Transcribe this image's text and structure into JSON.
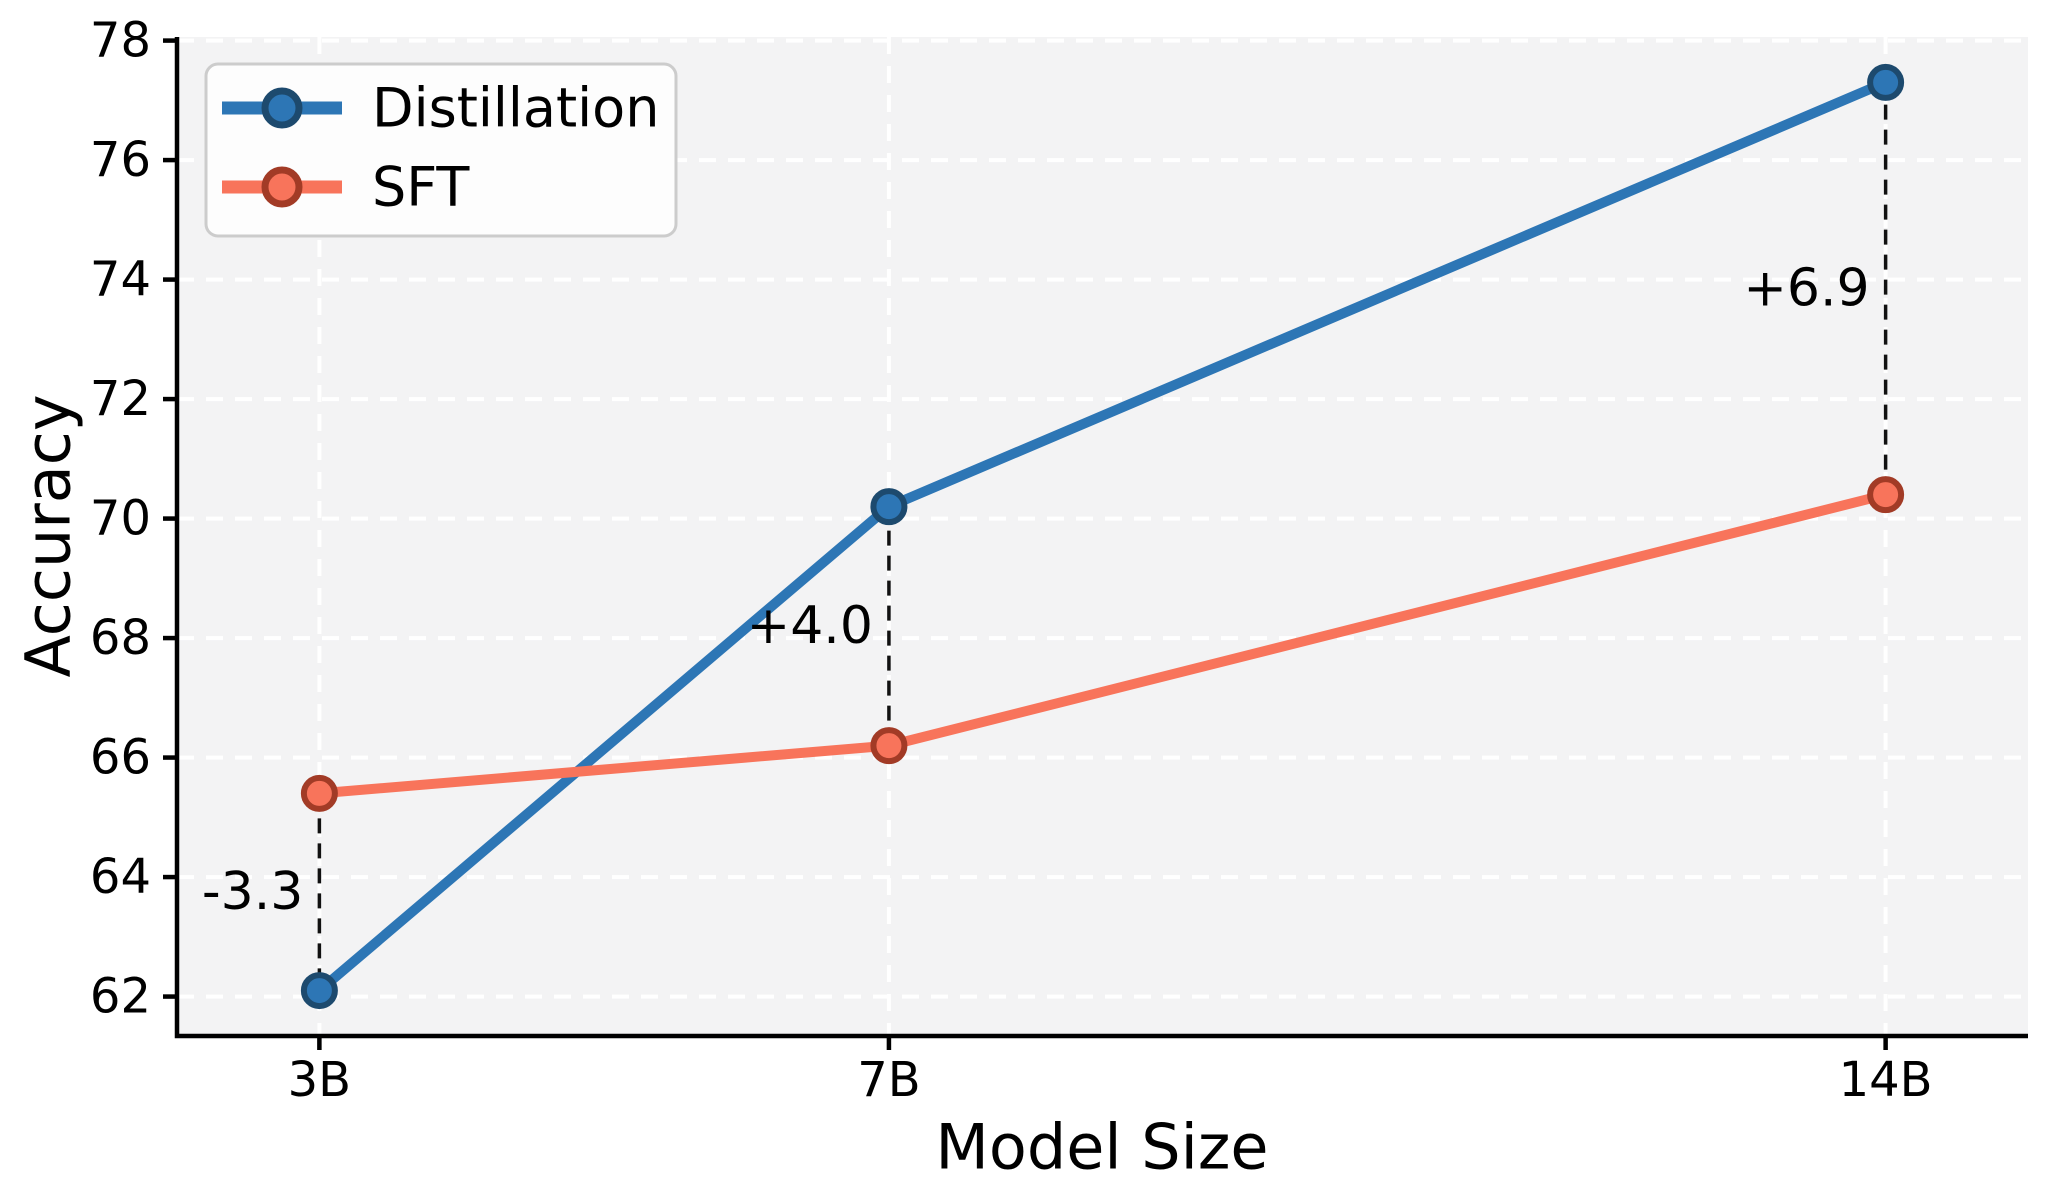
{
  "figure": {
    "background": "#ffffff",
    "plot_background": "#f3f3f4",
    "grid_color": "#ffffff",
    "axis_color": "#000000",
    "connector_color": "#111111",
    "legend_box_fill": "#fdfdfd",
    "legend_box_border": "#cccccc"
  },
  "chart_data": {
    "type": "line",
    "title": "",
    "xlabel": "Model Size",
    "ylabel": "Accuracy",
    "categories": [
      "3B",
      "7B",
      "14B"
    ],
    "x": [
      3,
      7,
      14
    ],
    "xlim": [
      2,
      15
    ],
    "ylim": [
      61.34,
      78.06
    ],
    "yticks": [
      62,
      64,
      66,
      68,
      70,
      72,
      74,
      76,
      78
    ],
    "grid": true,
    "grid_style": "dashed",
    "legend_position": "upper-left",
    "series": [
      {
        "name": "Distillation",
        "values": [
          62.1,
          70.2,
          77.3
        ],
        "color": "#2d76b5",
        "marker": "circle",
        "marker_edge_color": "#1d4a6e"
      },
      {
        "name": "SFT",
        "values": [
          65.4,
          66.2,
          70.4
        ],
        "color": "#f8745b",
        "marker": "circle",
        "marker_edge_color": "#a23b26"
      }
    ],
    "annotations": [
      {
        "label": "-3.3",
        "x": 3,
        "between": [
          65.4,
          62.1
        ]
      },
      {
        "label": "+4.0",
        "x": 7,
        "between": [
          66.2,
          70.2
        ]
      },
      {
        "label": "+6.9",
        "x": 14,
        "between": [
          70.4,
          77.3
        ]
      }
    ]
  }
}
